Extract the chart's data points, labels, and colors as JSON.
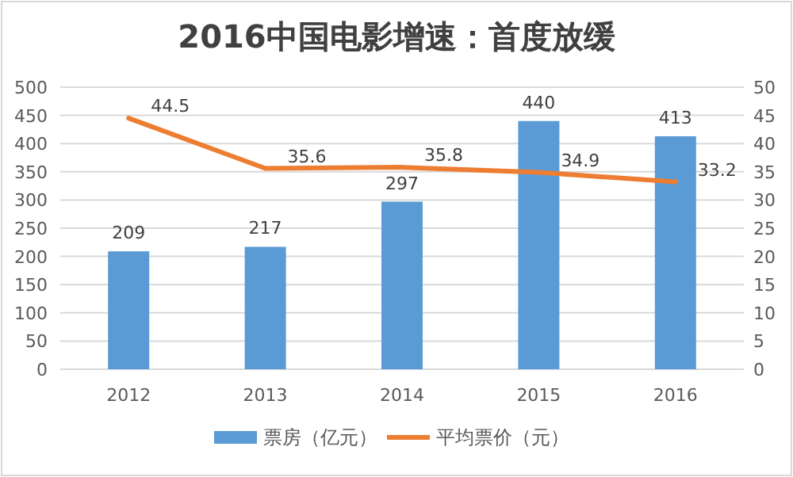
{
  "chart_data": {
    "type": "bar",
    "title": "2016中国电影增速：首度放缓",
    "categories": [
      "2012",
      "2013",
      "2014",
      "2015",
      "2016"
    ],
    "series": [
      {
        "name": "票房（亿元）",
        "color": "#5b9bd5",
        "values": [
          209,
          217,
          297,
          440,
          413
        ]
      },
      {
        "name": "平均票价（元）",
        "type": "line",
        "axis": "y2",
        "color": "#ed7d31",
        "values": [
          44.5,
          35.6,
          35.8,
          34.9,
          33.2
        ]
      }
    ],
    "ylim": [
      0,
      500
    ],
    "yticks": [
      0,
      50,
      100,
      150,
      200,
      250,
      300,
      350,
      400,
      450,
      500
    ],
    "y2lim": [
      0,
      50
    ],
    "y2ticks": [
      0,
      5,
      10,
      15,
      20,
      25,
      30,
      35,
      40,
      45,
      50
    ],
    "data_labels": true,
    "grid": "y",
    "legend": "bottom",
    "marker": "none",
    "line_style": "solid"
  }
}
